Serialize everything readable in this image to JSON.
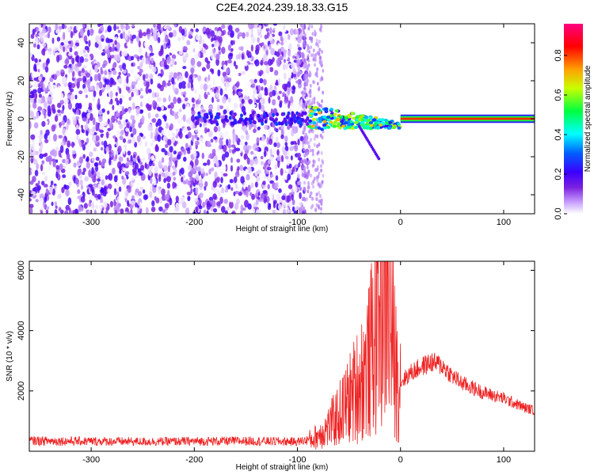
{
  "title": "C2E4.2024.239.18.33.G15",
  "chart_data": [
    {
      "type": "heatmap",
      "xlabel": "Height of straight line (km)",
      "ylabel": "Frequency (Hz)",
      "xlim": [
        -360,
        130
      ],
      "ylim": [
        -50,
        50
      ],
      "xticks": [
        -300,
        -200,
        -100,
        0,
        100
      ],
      "yticks": [
        -40,
        -20,
        0,
        20,
        40
      ],
      "colorbar": {
        "label": "Normalized spectral amplitude",
        "range": [
          0,
          0.96
        ],
        "ticks": [
          0.0,
          0.2,
          0.4,
          0.6,
          0.8
        ],
        "colormap": [
          "#ffffff",
          "#c8a0ff",
          "#7a1fe0",
          "#3a00ff",
          "#0060ff",
          "#00ffff",
          "#00ff40",
          "#c8ff00",
          "#ffa000",
          "#ff0000",
          "#ff0080"
        ]
      },
      "features": {
        "noise_region_x": [
          -360,
          -90
        ],
        "tone_start_x": -90,
        "strong_tone_start_x": 0,
        "tone_frequency": 0,
        "tone_peak_amplitude": 0.85
      },
      "grid": false
    },
    {
      "type": "line",
      "xlabel": "Height of straight line (km)",
      "ylabel": "SNR (10 * v/v)",
      "xlim": [
        -360,
        130
      ],
      "ylim": [
        0,
        6300
      ],
      "xticks": [
        -300,
        -200,
        -100,
        0,
        100
      ],
      "yticks": [
        2000,
        4000,
        6000
      ],
      "series": [
        {
          "color": "#ee2222",
          "x": [
            -360,
            -300,
            -250,
            -200,
            -150,
            -100,
            -85,
            -70,
            -60,
            -50,
            -40,
            -30,
            -25,
            -20,
            -15,
            -10,
            -5,
            0,
            10,
            20,
            30,
            40,
            50,
            60,
            80,
            100,
            120,
            130
          ],
          "y": [
            350,
            330,
            320,
            330,
            340,
            320,
            400,
            800,
            1200,
            1700,
            2300,
            3000,
            4000,
            5200,
            5700,
            4200,
            2800,
            2300,
            2600,
            2800,
            2950,
            2850,
            2500,
            2250,
            1950,
            1750,
            1450,
            1350
          ]
        }
      ],
      "grid": false
    }
  ]
}
